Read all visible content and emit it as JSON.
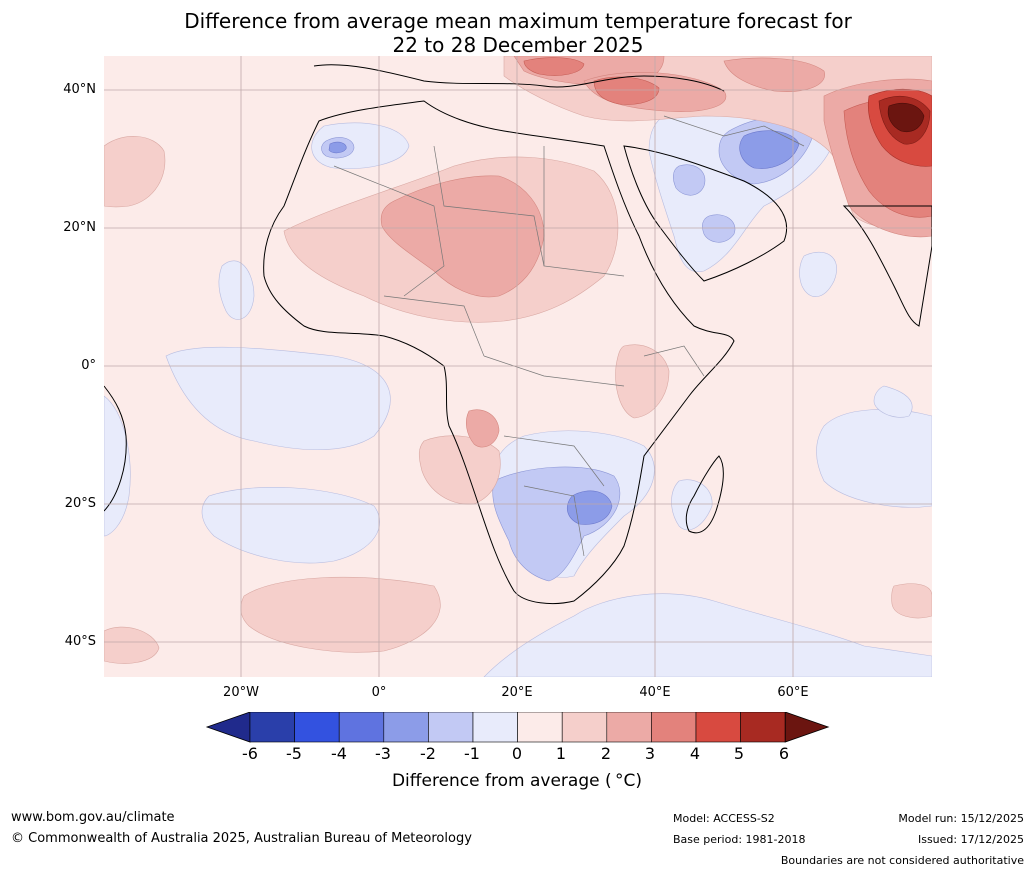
{
  "title": {
    "line1": "Difference from average mean maximum temperature forecast for",
    "line2": "22 to 28 December 2025"
  },
  "map": {
    "lat_labels": [
      "40°N",
      "20°N",
      "0°",
      "20°S",
      "40°S"
    ],
    "lon_labels": [
      "20°W",
      "0°",
      "20°E",
      "40°E",
      "60°E"
    ]
  },
  "colorbar": {
    "ticks": [
      "-6",
      "-5",
      "-4",
      "-3",
      "-2",
      "-1",
      "0",
      "1",
      "2",
      "3",
      "4",
      "5",
      "6"
    ],
    "colors": [
      "#202a8c",
      "#2a3faa",
      "#3352e0",
      "#5f73e0",
      "#8c9ce8",
      "#c2c9f4",
      "#e8ebfb",
      "#fcebe9",
      "#f5cfcb",
      "#ecaaa6",
      "#e3827c",
      "#d84a40",
      "#a82a22",
      "#6b1510"
    ],
    "title": "Difference from average ( °C)"
  },
  "footer": {
    "url": "www.bom.gov.au/climate",
    "copyright": "© Commonwealth of Australia 2025, Australian Bureau of Meteorology",
    "model": "Model: ACCESS-S2",
    "base_period": "Base period: 1981-2018",
    "model_run": "Model run: 15/12/2025",
    "issued": "Issued: 17/12/2025",
    "disclaimer": "Boundaries are not considered authoritative"
  }
}
